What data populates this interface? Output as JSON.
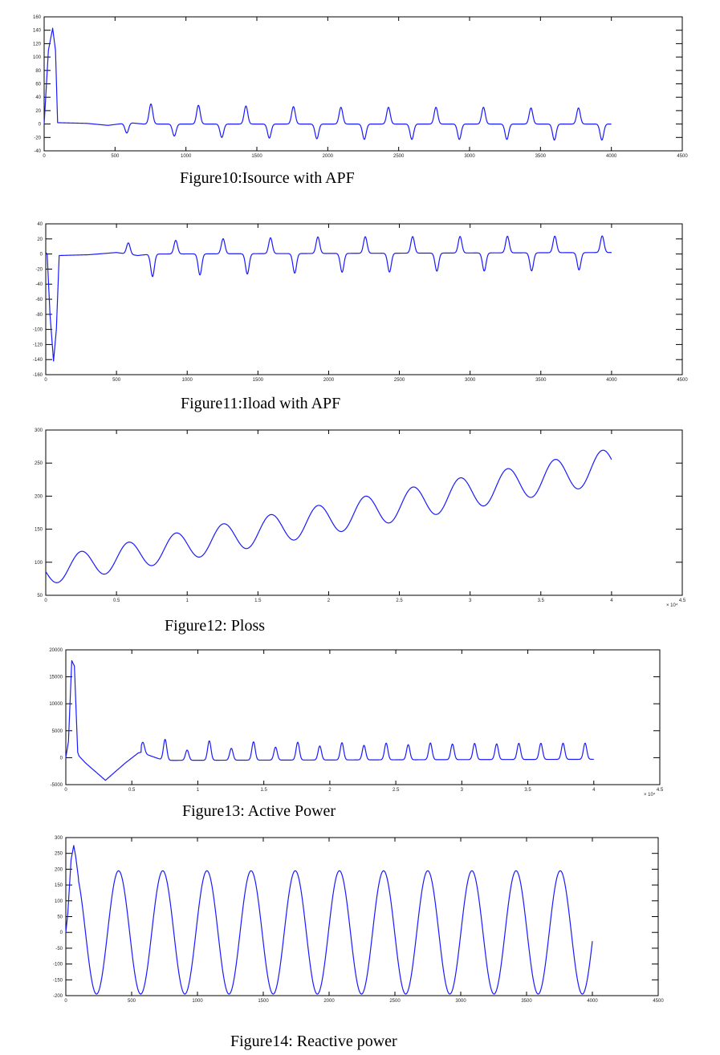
{
  "captions": {
    "fig10": "Figure10:Isource with APF",
    "fig11": "Figure11:Iload with APF",
    "fig12": "Figure12: Ploss",
    "fig13": "Figure13: Active Power",
    "fig14": "Figure14: Reactive power"
  },
  "line_color": "#1a1aff",
  "chart_data": [
    {
      "id": "fig10",
      "type": "line",
      "title": "Figure10:Isource with APF",
      "model": "pulse_train",
      "xlim": [
        0,
        4500
      ],
      "ylim": [
        -40,
        160
      ],
      "xticks": [
        0,
        500,
        1000,
        1500,
        2000,
        2500,
        3000,
        3500,
        4000,
        4500
      ],
      "xtick_labels": [
        "0",
        "500",
        "1000",
        "1500",
        "2000",
        "2500",
        "3000",
        "3500",
        "4000",
        "4500"
      ],
      "yticks": [
        -40,
        -20,
        0,
        20,
        40,
        60,
        80,
        100,
        120,
        140,
        160
      ],
      "ytick_labels": [
        "-40",
        "-20",
        "0",
        "20",
        "40",
        "60",
        "80",
        "100",
        "120",
        "140",
        "160"
      ],
      "x_end": 4000,
      "startup": [
        [
          0,
          0
        ],
        [
          30,
          110
        ],
        [
          60,
          143
        ],
        [
          80,
          110
        ],
        [
          95,
          2
        ]
      ],
      "baseline": [
        [
          95,
          2
        ],
        [
          300,
          1
        ],
        [
          450,
          -2
        ],
        [
          600,
          2
        ],
        [
          700,
          0
        ],
        [
          4000,
          0
        ]
      ],
      "pulse_width": 18,
      "pulses": [
        [
          583,
          -15
        ],
        [
          753,
          30
        ],
        [
          918,
          -18
        ],
        [
          1088,
          28
        ],
        [
          1253,
          -20
        ],
        [
          1423,
          27
        ],
        [
          1588,
          -21
        ],
        [
          1758,
          26
        ],
        [
          1923,
          -22
        ],
        [
          2093,
          25
        ],
        [
          2258,
          -23
        ],
        [
          2428,
          25
        ],
        [
          2593,
          -23
        ],
        [
          2763,
          25
        ],
        [
          2928,
          -23
        ],
        [
          3098,
          25
        ],
        [
          3263,
          -23
        ],
        [
          3433,
          24
        ],
        [
          3598,
          -24
        ],
        [
          3768,
          24
        ],
        [
          3933,
          -24
        ]
      ]
    },
    {
      "id": "fig11",
      "type": "line",
      "title": "Figure11:Iload with APF",
      "model": "pulse_train",
      "xlim": [
        0,
        4500
      ],
      "ylim": [
        -160,
        40
      ],
      "xticks": [
        0,
        500,
        1000,
        1500,
        2000,
        2500,
        3000,
        3500,
        4000,
        4500
      ],
      "xtick_labels": [
        "0",
        "500",
        "1000",
        "1500",
        "2000",
        "2500",
        "3000",
        "3500",
        "4000",
        "4500"
      ],
      "yticks": [
        -160,
        -140,
        -120,
        -100,
        -80,
        -60,
        -40,
        -20,
        0,
        20,
        40
      ],
      "ytick_labels": [
        "-160",
        "-140",
        "-120",
        "-100",
        "-80",
        "-60",
        "-40",
        "-20",
        "0",
        "20",
        "40"
      ],
      "x_end": 4000,
      "startup": [
        [
          0,
          2
        ],
        [
          10,
          0
        ],
        [
          30,
          -80
        ],
        [
          55,
          -142
        ],
        [
          75,
          -100
        ],
        [
          95,
          -2
        ]
      ],
      "baseline": [
        [
          95,
          -2
        ],
        [
          300,
          -1
        ],
        [
          500,
          2
        ],
        [
          650,
          -2
        ],
        [
          750,
          0
        ],
        [
          4000,
          2
        ]
      ],
      "pulse_width": 18,
      "pulses": [
        [
          584,
          15
        ],
        [
          755,
          -30
        ],
        [
          919,
          18
        ],
        [
          1090,
          -28
        ],
        [
          1254,
          20
        ],
        [
          1425,
          -27
        ],
        [
          1589,
          21
        ],
        [
          1760,
          -26
        ],
        [
          1924,
          22
        ],
        [
          2095,
          -25
        ],
        [
          2259,
          22
        ],
        [
          2430,
          -25
        ],
        [
          2594,
          22
        ],
        [
          2765,
          -24
        ],
        [
          2929,
          22
        ],
        [
          3100,
          -24
        ],
        [
          3264,
          22
        ],
        [
          3435,
          -24
        ],
        [
          3599,
          22
        ],
        [
          3770,
          -23
        ],
        [
          3934,
          22
        ]
      ]
    },
    {
      "id": "fig12",
      "type": "line",
      "title": "Figure12: Ploss",
      "model": "sinusoid_trend",
      "xlim": [
        0,
        4.5
      ],
      "ylim": [
        50,
        300
      ],
      "xticks": [
        0,
        0.5,
        1,
        1.5,
        2,
        2.5,
        3,
        3.5,
        4,
        4.5
      ],
      "xtick_labels": [
        "0",
        "0.5",
        "1",
        "1.5",
        "2",
        "2.5",
        "3",
        "3.5",
        "4",
        "4.5"
      ],
      "yticks": [
        50,
        100,
        150,
        200,
        250,
        300
      ],
      "ytick_labels": [
        "50",
        "100",
        "150",
        "200",
        "250",
        "300"
      ],
      "x_multiplier": "× 10⁴",
      "x_end": 4.0,
      "offset": 86,
      "slope": 40,
      "amplitude": 20,
      "amplitude_slope": 1.5,
      "period": 0.335,
      "phase": 0.167
    },
    {
      "id": "fig13",
      "type": "line",
      "title": "Figure13: Active Power",
      "model": "pulse_train",
      "xlim": [
        0,
        4.5
      ],
      "ylim": [
        -5000,
        20000
      ],
      "xticks": [
        0,
        0.5,
        1,
        1.5,
        2,
        2.5,
        3,
        3.5,
        4,
        4.5
      ],
      "xtick_labels": [
        "0",
        "0.5",
        "1",
        "1.5",
        "2",
        "2.5",
        "3",
        "3.5",
        "4",
        "4.5"
      ],
      "yticks": [
        -5000,
        0,
        5000,
        10000,
        15000,
        20000
      ],
      "ytick_labels": [
        "-5000",
        "0",
        "5000",
        "10000",
        "15000",
        "20000"
      ],
      "x_multiplier": "× 10⁴",
      "x_end": 4.0,
      "startup": [
        [
          0,
          0
        ],
        [
          0.02,
          3000
        ],
        [
          0.045,
          18000
        ],
        [
          0.065,
          17000
        ],
        [
          0.09,
          1000
        ],
        [
          0.1,
          300
        ],
        [
          0.15,
          -1000
        ],
        [
          0.3,
          -4200
        ],
        [
          0.45,
          -1000
        ],
        [
          0.55,
          900
        ],
        [
          0.57,
          1000
        ]
      ],
      "baseline": [
        [
          0.57,
          1000
        ],
        [
          0.6,
          700
        ],
        [
          0.74,
          -500
        ],
        [
          4.0,
          -300
        ]
      ],
      "pulse_width": 0.018,
      "pulses": [
        [
          0.584,
          2000
        ],
        [
          0.752,
          3900
        ],
        [
          0.919,
          1900
        ],
        [
          1.087,
          3600
        ],
        [
          1.254,
          2200
        ],
        [
          1.422,
          3400
        ],
        [
          1.589,
          2400
        ],
        [
          1.757,
          3300
        ],
        [
          1.924,
          2600
        ],
        [
          2.092,
          3200
        ],
        [
          2.259,
          2700
        ],
        [
          2.427,
          3100
        ],
        [
          2.594,
          2800
        ],
        [
          2.762,
          3100
        ],
        [
          2.929,
          2900
        ],
        [
          3.097,
          3000
        ],
        [
          3.264,
          2900
        ],
        [
          3.432,
          3000
        ],
        [
          3.599,
          3000
        ],
        [
          3.767,
          3000
        ],
        [
          3.934,
          3000
        ]
      ]
    },
    {
      "id": "fig14",
      "type": "line",
      "title": "Figure14: Reactive power",
      "model": "sinusoid",
      "xlim": [
        0,
        4500
      ],
      "ylim": [
        -200,
        300
      ],
      "xticks": [
        0,
        500,
        1000,
        1500,
        2000,
        2500,
        3000,
        3500,
        4000,
        4500
      ],
      "xtick_labels": [
        "0",
        "500",
        "1000",
        "1500",
        "2000",
        "2500",
        "3000",
        "3500",
        "4000",
        "4500"
      ],
      "yticks": [
        -200,
        -150,
        -100,
        -50,
        0,
        50,
        100,
        150,
        200,
        250,
        300
      ],
      "ytick_labels": [
        "-200",
        "-150",
        "-100",
        "-50",
        "0",
        "50",
        "100",
        "150",
        "200",
        "250",
        "300"
      ],
      "x_end": 4000,
      "amplitude": 195,
      "period": 335.5,
      "peak_at": 3756,
      "startup": [
        [
          0,
          0
        ],
        [
          15,
          60
        ],
        [
          40,
          230
        ],
        [
          60,
          275
        ],
        [
          75,
          240
        ],
        [
          95,
          175
        ]
      ]
    }
  ]
}
